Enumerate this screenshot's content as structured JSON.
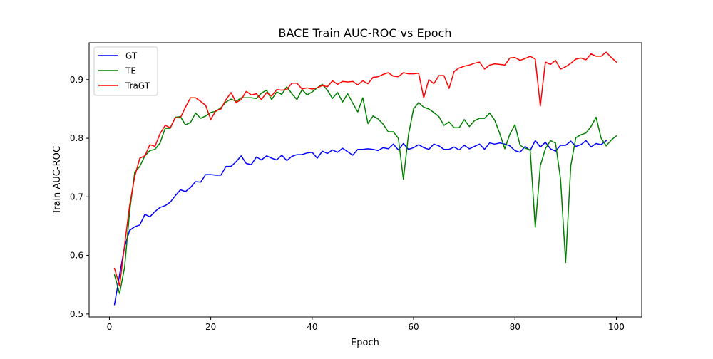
{
  "chart_data": {
    "type": "line",
    "title": "BACE Train AUC-ROC vs Epoch",
    "xlabel": "Epoch",
    "ylabel": "Train AUC-ROC",
    "xlim": [
      -4,
      105
    ],
    "ylim": [
      0.495,
      0.963
    ],
    "xticks": [
      0,
      20,
      40,
      60,
      80,
      100
    ],
    "yticks": [
      0.5,
      0.6,
      0.7,
      0.8,
      0.9
    ],
    "xtick_labels": [
      "0",
      "20",
      "40",
      "60",
      "80",
      "100"
    ],
    "ytick_labels": [
      "0.5",
      "0.6",
      "0.7",
      "0.8",
      "0.9"
    ],
    "grid": false,
    "legend_position": "top-left",
    "series": [
      {
        "name": "GT",
        "color": "#0000ff",
        "x": [
          1,
          2,
          3,
          4,
          5,
          6,
          7,
          8,
          9,
          10,
          11,
          12,
          13,
          14,
          15,
          16,
          17,
          18,
          19,
          20,
          21,
          22,
          23,
          24,
          25,
          26,
          27,
          28,
          29,
          30,
          31,
          32,
          33,
          34,
          35,
          36,
          37,
          38,
          39,
          40,
          41,
          42,
          43,
          44,
          45,
          46,
          47,
          48,
          49,
          50,
          51,
          52,
          53,
          54,
          55,
          56,
          57,
          58,
          59,
          60,
          61,
          62,
          63,
          64,
          65,
          66,
          67,
          68,
          69,
          70,
          71,
          72,
          73,
          74,
          75,
          76,
          77,
          78,
          79,
          80,
          81,
          82,
          83,
          84,
          85,
          86,
          87,
          88,
          89,
          90,
          91,
          92,
          93,
          94,
          95,
          96,
          97,
          98
        ],
        "y": [
          0.516,
          0.567,
          0.615,
          0.643,
          0.649,
          0.652,
          0.67,
          0.666,
          0.675,
          0.682,
          0.685,
          0.691,
          0.702,
          0.712,
          0.709,
          0.716,
          0.726,
          0.725,
          0.738,
          0.738,
          0.737,
          0.737,
          0.752,
          0.752,
          0.76,
          0.77,
          0.757,
          0.755,
          0.768,
          0.763,
          0.77,
          0.766,
          0.763,
          0.771,
          0.762,
          0.769,
          0.772,
          0.772,
          0.775,
          0.776,
          0.766,
          0.778,
          0.774,
          0.78,
          0.776,
          0.783,
          0.777,
          0.771,
          0.781,
          0.781,
          0.782,
          0.781,
          0.779,
          0.784,
          0.782,
          0.79,
          0.78,
          0.791,
          0.781,
          0.784,
          0.789,
          0.784,
          0.781,
          0.79,
          0.787,
          0.781,
          0.781,
          0.785,
          0.78,
          0.788,
          0.782,
          0.786,
          0.79,
          0.781,
          0.792,
          0.79,
          0.792,
          0.79,
          0.787,
          0.779,
          0.776,
          0.786,
          0.779,
          0.796,
          0.785,
          0.793,
          0.782,
          0.778,
          0.788,
          0.788,
          0.795,
          0.786,
          0.789,
          0.796,
          0.785,
          0.791,
          0.789,
          0.796
        ]
      },
      {
        "name": "TE",
        "color": "#008000",
        "x": [
          1,
          2,
          3,
          4,
          5,
          6,
          7,
          8,
          9,
          10,
          11,
          12,
          13,
          14,
          15,
          16,
          17,
          18,
          19,
          20,
          21,
          22,
          23,
          24,
          25,
          26,
          27,
          28,
          29,
          30,
          31,
          32,
          33,
          34,
          35,
          36,
          37,
          38,
          39,
          40,
          41,
          42,
          43,
          44,
          45,
          46,
          47,
          48,
          49,
          50,
          51,
          52,
          53,
          54,
          55,
          56,
          57,
          58,
          59,
          60,
          61,
          62,
          63,
          64,
          65,
          66,
          67,
          68,
          69,
          70,
          71,
          72,
          73,
          74,
          75,
          76,
          77,
          78,
          79,
          80,
          81,
          82,
          83,
          84,
          85,
          86,
          87,
          88,
          89,
          90,
          91,
          92,
          93,
          94,
          95,
          96,
          97,
          98,
          99,
          100
        ],
        "y": [
          0.567,
          0.535,
          0.58,
          0.676,
          0.742,
          0.752,
          0.77,
          0.779,
          0.781,
          0.792,
          0.817,
          0.817,
          0.836,
          0.837,
          0.823,
          0.827,
          0.843,
          0.834,
          0.838,
          0.844,
          0.846,
          0.852,
          0.862,
          0.867,
          0.863,
          0.869,
          0.869,
          0.869,
          0.868,
          0.877,
          0.882,
          0.866,
          0.879,
          0.875,
          0.888,
          0.876,
          0.866,
          0.883,
          0.874,
          0.879,
          0.886,
          0.892,
          0.882,
          0.868,
          0.878,
          0.862,
          0.876,
          0.86,
          0.845,
          0.869,
          0.825,
          0.838,
          0.833,
          0.824,
          0.811,
          0.811,
          0.8,
          0.73,
          0.806,
          0.85,
          0.861,
          0.853,
          0.85,
          0.844,
          0.837,
          0.822,
          0.828,
          0.818,
          0.818,
          0.832,
          0.82,
          0.83,
          0.834,
          0.834,
          0.843,
          0.831,
          0.808,
          0.782,
          0.807,
          0.823,
          0.788,
          0.783,
          0.78,
          0.648,
          0.753,
          0.782,
          0.796,
          0.792,
          0.73,
          0.588,
          0.753,
          0.801,
          0.806,
          0.809,
          0.82,
          0.836,
          0.8,
          0.787,
          0.797,
          0.804
        ]
      },
      {
        "name": "TraGT",
        "color": "#ff0000",
        "x": [
          1,
          2,
          3,
          4,
          5,
          6,
          7,
          8,
          9,
          10,
          11,
          12,
          13,
          14,
          15,
          16,
          17,
          18,
          19,
          20,
          21,
          22,
          23,
          24,
          25,
          26,
          27,
          28,
          29,
          30,
          31,
          32,
          33,
          34,
          35,
          36,
          37,
          38,
          39,
          40,
          41,
          42,
          43,
          44,
          45,
          46,
          47,
          48,
          49,
          50,
          51,
          52,
          53,
          54,
          55,
          56,
          57,
          58,
          59,
          60,
          61,
          62,
          63,
          64,
          65,
          66,
          67,
          68,
          69,
          70,
          71,
          72,
          73,
          74,
          75,
          76,
          77,
          78,
          79,
          80,
          81,
          82,
          83,
          84,
          85,
          86,
          87,
          88,
          89,
          90,
          91,
          92,
          93,
          94,
          95,
          96,
          97,
          98,
          99,
          100
        ],
        "y": [
          0.578,
          0.548,
          0.618,
          0.686,
          0.735,
          0.766,
          0.77,
          0.789,
          0.786,
          0.808,
          0.822,
          0.818,
          0.835,
          0.835,
          0.853,
          0.869,
          0.869,
          0.863,
          0.856,
          0.832,
          0.847,
          0.85,
          0.866,
          0.878,
          0.861,
          0.866,
          0.88,
          0.874,
          0.876,
          0.866,
          0.878,
          0.872,
          0.883,
          0.882,
          0.883,
          0.894,
          0.894,
          0.884,
          0.886,
          0.884,
          0.886,
          0.89,
          0.888,
          0.898,
          0.892,
          0.897,
          0.896,
          0.897,
          0.891,
          0.898,
          0.893,
          0.904,
          0.905,
          0.909,
          0.912,
          0.906,
          0.905,
          0.912,
          0.91,
          0.91,
          0.911,
          0.869,
          0.9,
          0.893,
          0.907,
          0.907,
          0.885,
          0.914,
          0.92,
          0.923,
          0.925,
          0.928,
          0.93,
          0.918,
          0.925,
          0.927,
          0.926,
          0.925,
          0.937,
          0.938,
          0.933,
          0.936,
          0.94,
          0.935,
          0.855,
          0.93,
          0.926,
          0.933,
          0.918,
          0.922,
          0.928,
          0.935,
          0.937,
          0.934,
          0.944,
          0.94,
          0.94,
          0.947,
          0.938,
          0.93
        ]
      }
    ]
  }
}
